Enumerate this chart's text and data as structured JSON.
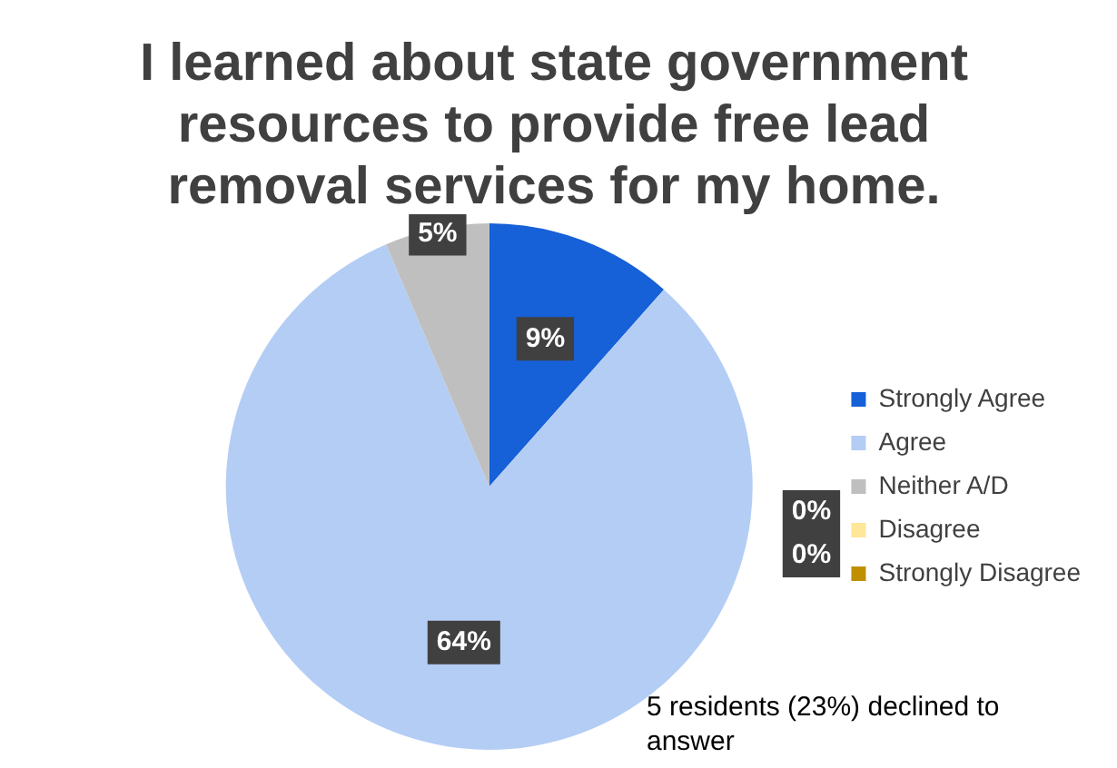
{
  "chart_data": {
    "type": "pie",
    "title": "I learned about state government resources to provide free lead removal services for my home.",
    "categories": [
      "Strongly Agree",
      "Agree",
      "Neither A/D",
      "Disagree",
      "Strongly Disagree"
    ],
    "values": [
      9,
      64,
      5,
      0,
      0
    ],
    "colors": [
      "#1660d8",
      "#b4cdf5",
      "#bfbfbf",
      "#ffe699",
      "#bf8f00"
    ],
    "value_labels": [
      "9%",
      "64%",
      "5%",
      "0%",
      "0%"
    ],
    "legend": "right",
    "annotations": [
      "5 residents (23%) declined to answer"
    ]
  }
}
